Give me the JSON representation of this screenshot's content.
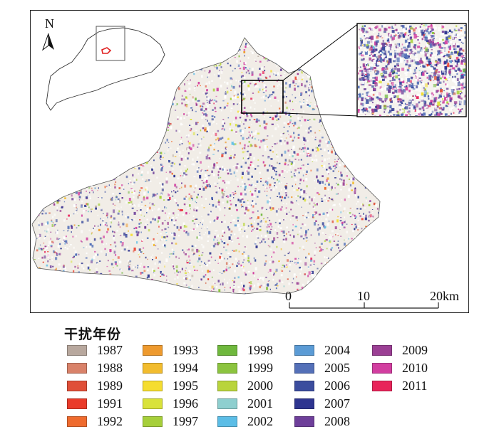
{
  "north_label": "N",
  "scale": {
    "ticks": [
      "0",
      "10",
      "20km"
    ]
  },
  "legend": {
    "title": "干扰年份",
    "columns": [
      [
        {
          "year": "1987",
          "color": "#b8a89e"
        },
        {
          "year": "1988",
          "color": "#d9826a"
        },
        {
          "year": "1989",
          "color": "#e04f38"
        },
        {
          "year": "1991",
          "color": "#ea3b2a"
        },
        {
          "year": "1992",
          "color": "#ef6b2e"
        }
      ],
      [
        {
          "year": "1993",
          "color": "#ee9a2e"
        },
        {
          "year": "1994",
          "color": "#f2bc2e"
        },
        {
          "year": "1995",
          "color": "#f5dd30"
        },
        {
          "year": "1996",
          "color": "#d9e23a"
        },
        {
          "year": "1997",
          "color": "#a6cf3a"
        }
      ],
      [
        {
          "year": "1998",
          "color": "#6fb83d"
        },
        {
          "year": "1999",
          "color": "#8cc43f"
        },
        {
          "year": "2000",
          "color": "#b9d43c"
        },
        {
          "year": "2001",
          "color": "#8ecfcf"
        },
        {
          "year": "2002",
          "color": "#5bbde6"
        }
      ],
      [
        {
          "year": "2004",
          "color": "#5b9bd5"
        },
        {
          "year": "2005",
          "color": "#5470b8"
        },
        {
          "year": "2006",
          "color": "#3b4d9e"
        },
        {
          "year": "2007",
          "color": "#2e3590"
        },
        {
          "year": "2008",
          "color": "#6e3f9a"
        }
      ],
      [
        {
          "year": "2009",
          "color": "#9b3f94"
        },
        {
          "year": "2010",
          "color": "#d23ea0"
        },
        {
          "year": "2011",
          "color": "#e8245a"
        }
      ]
    ]
  }
}
